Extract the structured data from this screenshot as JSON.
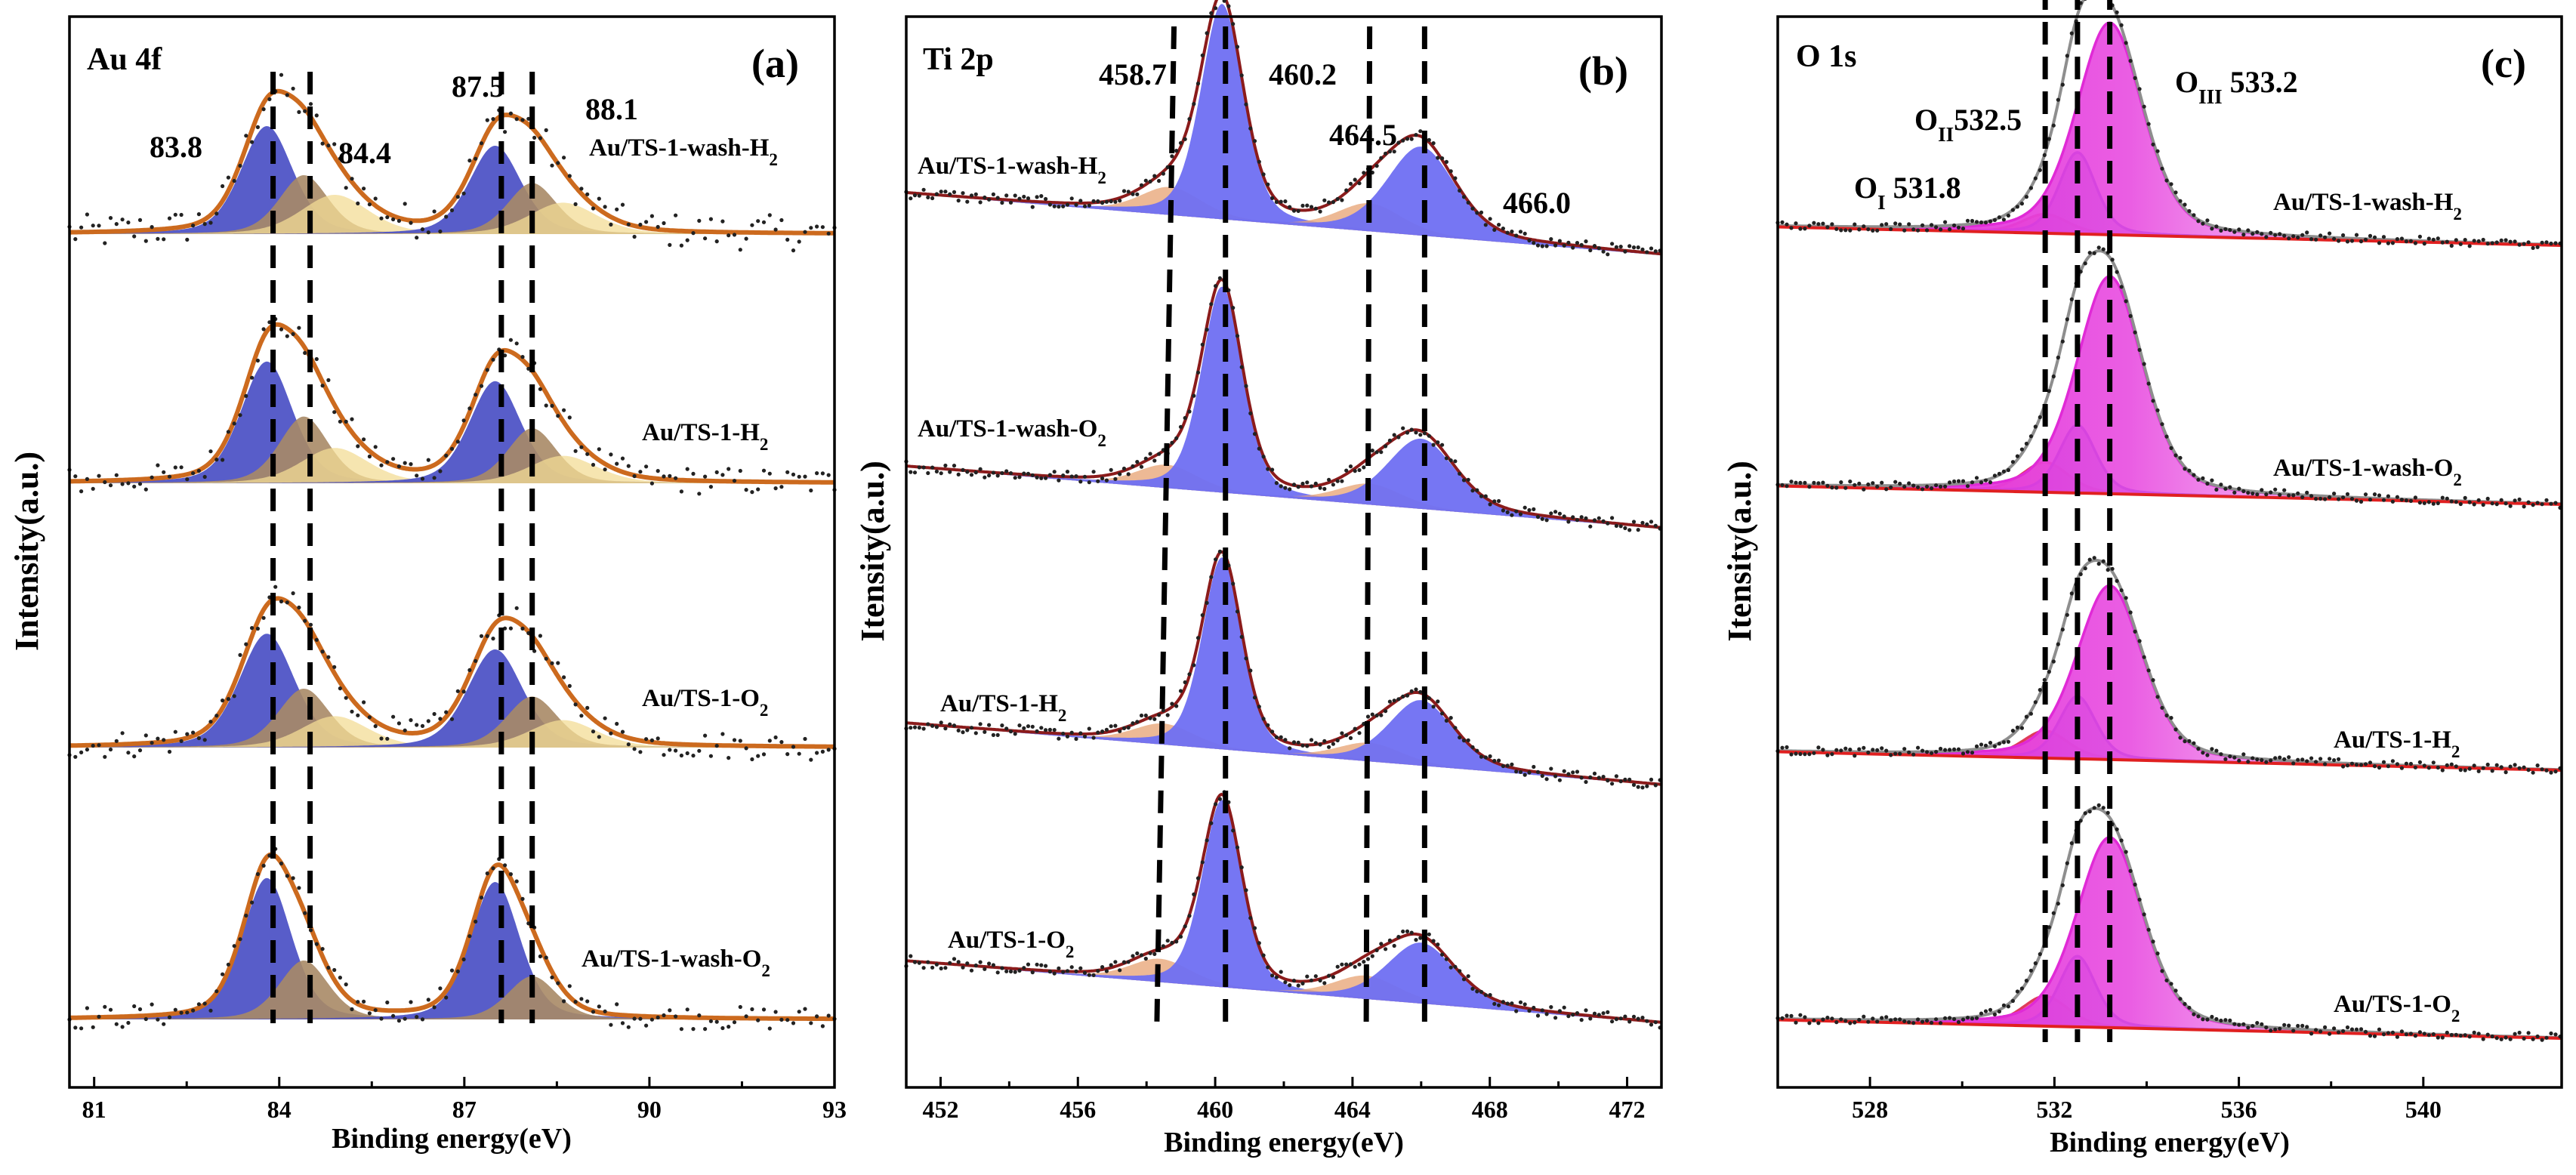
{
  "figure": {
    "panels": [
      {
        "id": "a",
        "letter": "(a)",
        "title": "Au 4f",
        "xlabel": "Binding energy(eV)",
        "ylabel": "Intensity(a.u.)",
        "peak_labels": [
          "83.8",
          "84.4",
          "87.5",
          "88.1"
        ],
        "samples": [
          {
            "label": "Au/TS-1-wash-H",
            "sub": "2"
          },
          {
            "label": "Au/TS-1-H",
            "sub": "2"
          },
          {
            "label": "Au/TS-1-O",
            "sub": "2"
          },
          {
            "label": "Au/TS-1-wash-O",
            "sub": "2"
          }
        ]
      },
      {
        "id": "b",
        "letter": "(b)",
        "title": "Ti 2p",
        "xlabel": "Binding energy(eV)",
        "ylabel": "Itensity(a.u.)",
        "peak_labels": [
          "458.7",
          "460.2",
          "464.5",
          "466.0"
        ],
        "samples": [
          {
            "label": "Au/TS-1-wash-H",
            "sub": "2"
          },
          {
            "label": "Au/TS-1-wash-O",
            "sub": "2"
          },
          {
            "label": "Au/TS-1-H",
            "sub": "2"
          },
          {
            "label": "Au/TS-1-O",
            "sub": "2"
          }
        ]
      },
      {
        "id": "c",
        "letter": "(c)",
        "title": "O 1s",
        "xlabel": "Binding energy(eV)",
        "ylabel": "Itensity(a.u.)",
        "peak_labels": [
          {
            "main": "O",
            "sub": "I",
            "value": " 531.8"
          },
          {
            "main": "O",
            "sub": "II",
            "value": "532.5"
          },
          {
            "main": "O",
            "sub": "III",
            "value": " 533.2"
          }
        ],
        "samples": [
          {
            "label": "Au/TS-1-wash-H",
            "sub": "2"
          },
          {
            "label": "Au/TS-1-wash-O",
            "sub": "2"
          },
          {
            "label": "Au/TS-1-H",
            "sub": "2"
          },
          {
            "label": "Au/TS-1-O",
            "sub": "2"
          }
        ]
      }
    ]
  },
  "chart_data": [
    {
      "type": "line",
      "title": "Au 4f",
      "xlabel": "Binding energy(eV)",
      "ylabel": "Intensity(a.u.)",
      "xlim": [
        80.6,
        93.0
      ],
      "xticks": [
        81,
        84,
        87,
        90,
        93
      ],
      "xtick_labels": [
        "81",
        "84",
        "87",
        "90",
        "93"
      ],
      "ylim": [
        0,
        4
      ],
      "colors": {
        "envelope": "#cc6a1e",
        "comp1": "#4a4fc4",
        "comp2": "#a88a66",
        "comp3": "#f3dc96",
        "dots": "#222222"
      },
      "dashed_lines_x": [
        83.9,
        84.5,
        87.6,
        88.1
      ],
      "series": [
        {
          "name": "Au/TS-1-wash-H2",
          "offset": 3,
          "noise": 0.09,
          "components": [
            {
              "center": 83.8,
              "amp": 0.55,
              "width": 0.42,
              "color": "comp1"
            },
            {
              "center": 84.4,
              "amp": 0.3,
              "width": 0.4,
              "color": "comp2"
            },
            {
              "center": 84.9,
              "amp": 0.2,
              "width": 0.55,
              "color": "comp3"
            },
            {
              "center": 87.5,
              "amp": 0.45,
              "width": 0.42,
              "color": "comp1"
            },
            {
              "center": 88.1,
              "amp": 0.26,
              "width": 0.4,
              "color": "comp2"
            },
            {
              "center": 88.6,
              "amp": 0.16,
              "width": 0.55,
              "color": "comp3"
            }
          ]
        },
        {
          "name": "Au/TS-1-H2",
          "offset": 2,
          "noise": 0.07,
          "components": [
            {
              "center": 83.8,
              "amp": 0.62,
              "width": 0.42,
              "color": "comp1"
            },
            {
              "center": 84.4,
              "amp": 0.34,
              "width": 0.4,
              "color": "comp2"
            },
            {
              "center": 84.9,
              "amp": 0.18,
              "width": 0.55,
              "color": "comp3"
            },
            {
              "center": 87.5,
              "amp": 0.52,
              "width": 0.42,
              "color": "comp1"
            },
            {
              "center": 88.1,
              "amp": 0.28,
              "width": 0.4,
              "color": "comp2"
            },
            {
              "center": 88.6,
              "amp": 0.14,
              "width": 0.55,
              "color": "comp3"
            }
          ]
        },
        {
          "name": "Au/TS-1-O2",
          "offset": 1,
          "noise": 0.07,
          "components": [
            {
              "center": 83.8,
              "amp": 0.58,
              "width": 0.45,
              "color": "comp1"
            },
            {
              "center": 84.4,
              "amp": 0.3,
              "width": 0.42,
              "color": "comp2"
            },
            {
              "center": 84.9,
              "amp": 0.16,
              "width": 0.55,
              "color": "comp3"
            },
            {
              "center": 87.5,
              "amp": 0.5,
              "width": 0.45,
              "color": "comp1"
            },
            {
              "center": 88.1,
              "amp": 0.26,
              "width": 0.42,
              "color": "comp2"
            },
            {
              "center": 88.6,
              "amp": 0.14,
              "width": 0.55,
              "color": "comp3"
            }
          ]
        },
        {
          "name": "Au/TS-1-wash-O2",
          "offset": 0,
          "noise": 0.06,
          "components": [
            {
              "center": 83.8,
              "amp": 0.72,
              "width": 0.4,
              "color": "comp1"
            },
            {
              "center": 84.4,
              "amp": 0.3,
              "width": 0.4,
              "color": "comp2"
            },
            {
              "center": 87.5,
              "amp": 0.7,
              "width": 0.4,
              "color": "comp1"
            },
            {
              "center": 88.1,
              "amp": 0.22,
              "width": 0.4,
              "color": "comp2"
            }
          ]
        }
      ]
    },
    {
      "type": "line",
      "title": "Ti 2p",
      "xlabel": "Binding energy(eV)",
      "ylabel": "Itensity(a.u.)",
      "xlim": [
        451.0,
        473.0
      ],
      "xticks": [
        452,
        456,
        460,
        464,
        468,
        472
      ],
      "xtick_labels": [
        "452",
        "456",
        "460",
        "464",
        "468",
        "472"
      ],
      "ylim": [
        0,
        4
      ],
      "colors": {
        "envelope": "#8b1b1b",
        "comp1": "#6f6ff2",
        "comp2": "#e8a77a",
        "dots": "#222222"
      },
      "dashed_lines_start_x": [
        458.8,
        460.3,
        464.5,
        466.1
      ],
      "dashed_lines_end_x": [
        458.3,
        460.3,
        464.4,
        466.1
      ],
      "series": [
        {
          "name": "Au/TS-1-wash-H2",
          "offset": 3,
          "noise": 0.025,
          "components": [
            {
              "center": 458.7,
              "amp": 0.12,
              "width": 0.9,
              "color": "comp2"
            },
            {
              "center": 460.2,
              "amp": 0.92,
              "width": 0.62,
              "color": "comp1"
            },
            {
              "center": 464.5,
              "amp": 0.12,
              "width": 0.95,
              "color": "comp2"
            },
            {
              "center": 466.0,
              "amp": 0.38,
              "width": 1.0,
              "color": "comp1"
            }
          ]
        },
        {
          "name": "Au/TS-1-wash-O2",
          "offset": 2,
          "noise": 0.025,
          "components": [
            {
              "center": 458.6,
              "amp": 0.1,
              "width": 0.9,
              "color": "comp2"
            },
            {
              "center": 460.2,
              "amp": 0.88,
              "width": 0.6,
              "color": "comp1"
            },
            {
              "center": 464.5,
              "amp": 0.09,
              "width": 0.95,
              "color": "comp2"
            },
            {
              "center": 466.0,
              "amp": 0.3,
              "width": 1.0,
              "color": "comp1"
            }
          ]
        },
        {
          "name": "Au/TS-1-H2",
          "offset": 1,
          "noise": 0.025,
          "components": [
            {
              "center": 458.5,
              "amp": 0.09,
              "width": 0.9,
              "color": "comp2"
            },
            {
              "center": 460.2,
              "amp": 0.82,
              "width": 0.58,
              "color": "comp1"
            },
            {
              "center": 464.5,
              "amp": 0.08,
              "width": 0.95,
              "color": "comp2"
            },
            {
              "center": 466.0,
              "amp": 0.28,
              "width": 0.95,
              "color": "comp1"
            }
          ]
        },
        {
          "name": "Au/TS-1-O2",
          "offset": 0,
          "noise": 0.025,
          "components": [
            {
              "center": 458.4,
              "amp": 0.1,
              "width": 0.9,
              "color": "comp2"
            },
            {
              "center": 460.2,
              "amp": 0.8,
              "width": 0.58,
              "color": "comp1"
            },
            {
              "center": 464.4,
              "amp": 0.1,
              "width": 0.95,
              "color": "comp2"
            },
            {
              "center": 466.0,
              "amp": 0.26,
              "width": 1.0,
              "color": "comp1"
            }
          ]
        }
      ]
    },
    {
      "type": "line",
      "title": "O 1s",
      "xlabel": "Binding energy(eV)",
      "ylabel": "Itensity(a.u.)",
      "xlim": [
        526.0,
        543.0
      ],
      "xticks": [
        528,
        532,
        536,
        540
      ],
      "xtick_labels": [
        "528",
        "532",
        "536",
        "540"
      ],
      "ylim": [
        0,
        4
      ],
      "colors": {
        "envelope": "#8e8e8e",
        "comp1": "#e03a5a",
        "comp2": "#2a2ae0",
        "comp3": "#e02ad6",
        "baseline": "#e02020",
        "dots": "#222222"
      },
      "dashed_lines_x": [
        531.8,
        532.5,
        533.2
      ],
      "series": [
        {
          "name": "Au/TS-1-wash-H2",
          "offset": 3,
          "noise": 0.015,
          "components": [
            {
              "center": 531.8,
              "amp": 0.07,
              "width": 0.5,
              "color": "comp1"
            },
            {
              "center": 532.5,
              "amp": 0.3,
              "width": 0.4,
              "color": "comp2"
            },
            {
              "center": 533.2,
              "amp": 0.78,
              "width": 0.72,
              "color": "comp3"
            }
          ]
        },
        {
          "name": "Au/TS-1-wash-O2",
          "offset": 2,
          "noise": 0.015,
          "components": [
            {
              "center": 531.8,
              "amp": 0.11,
              "width": 0.5,
              "color": "comp1"
            },
            {
              "center": 532.5,
              "amp": 0.25,
              "width": 0.4,
              "color": "comp2"
            },
            {
              "center": 533.2,
              "amp": 0.8,
              "width": 0.72,
              "color": "comp3"
            }
          ]
        },
        {
          "name": "Au/TS-1-H2",
          "offset": 1,
          "noise": 0.015,
          "components": [
            {
              "center": 531.8,
              "amp": 0.1,
              "width": 0.5,
              "color": "comp1"
            },
            {
              "center": 532.5,
              "amp": 0.23,
              "width": 0.4,
              "color": "comp2"
            },
            {
              "center": 533.2,
              "amp": 0.64,
              "width": 0.72,
              "color": "comp3"
            }
          ]
        },
        {
          "name": "Au/TS-1-O2",
          "offset": 0,
          "noise": 0.015,
          "components": [
            {
              "center": 531.8,
              "amp": 0.11,
              "width": 0.5,
              "color": "comp1"
            },
            {
              "center": 532.5,
              "amp": 0.26,
              "width": 0.4,
              "color": "comp2"
            },
            {
              "center": 533.2,
              "amp": 0.7,
              "width": 0.72,
              "color": "comp3"
            }
          ]
        }
      ]
    }
  ]
}
